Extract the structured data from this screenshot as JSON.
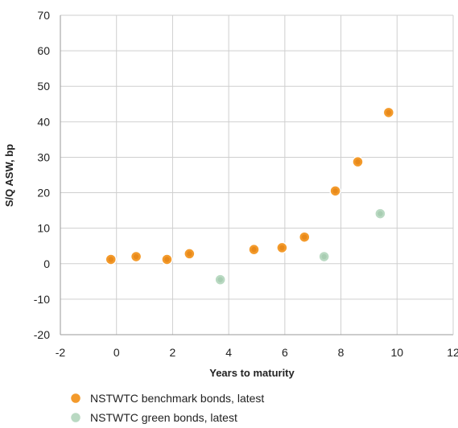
{
  "chart_data": {
    "type": "scatter",
    "title": "",
    "xlabel": "Years to maturity",
    "ylabel": "S/Q ASW, bp",
    "xlim": [
      -2,
      12
    ],
    "ylim": [
      -20,
      70
    ],
    "xticks": [
      -2,
      0,
      2,
      4,
      6,
      8,
      10,
      12
    ],
    "yticks": [
      -20,
      -10,
      0,
      10,
      20,
      30,
      40,
      50,
      60,
      70
    ],
    "grid": true,
    "legend_position": "bottom-left",
    "series": [
      {
        "name": "NSTWTC benchmark bonds, latest",
        "color": "#F39A2B",
        "points": [
          {
            "x": -0.2,
            "y": 1.2
          },
          {
            "x": 0.7,
            "y": 2.0
          },
          {
            "x": 1.8,
            "y": 1.2
          },
          {
            "x": 2.6,
            "y": 2.8
          },
          {
            "x": 4.9,
            "y": 4.0
          },
          {
            "x": 5.9,
            "y": 4.5
          },
          {
            "x": 6.7,
            "y": 7.5
          },
          {
            "x": 7.8,
            "y": 20.5
          },
          {
            "x": 8.6,
            "y": 28.7
          },
          {
            "x": 9.7,
            "y": 42.6
          }
        ]
      },
      {
        "name": "NSTWTC green bonds, latest",
        "color": "#B9D9C2",
        "points": [
          {
            "x": 3.7,
            "y": -4.5
          },
          {
            "x": 7.4,
            "y": 2.0
          },
          {
            "x": 9.4,
            "y": 14.1
          }
        ]
      }
    ]
  }
}
